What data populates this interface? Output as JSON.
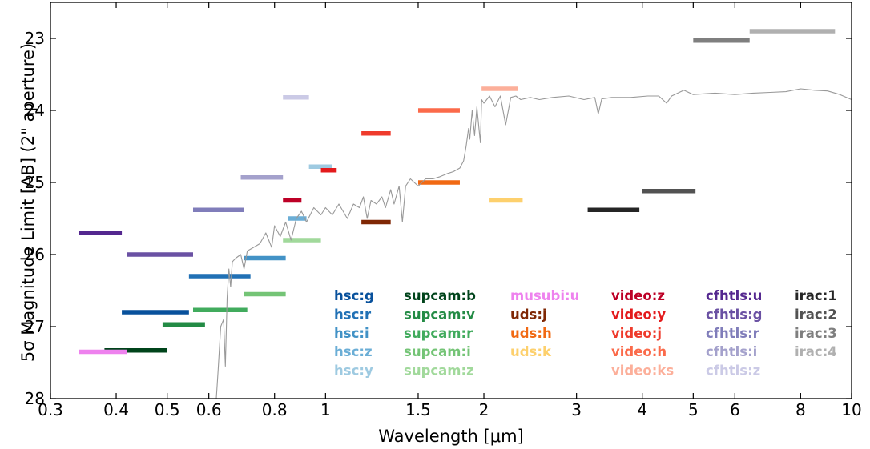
{
  "chart_data": {
    "type": "line",
    "xlabel": "Wavelength [μm]",
    "ylabel": "5σ Magnitude Limit [AB] (2\" aperture)",
    "xscale": "log",
    "xlim": [
      0.3,
      10
    ],
    "ylim": [
      28,
      22.5
    ],
    "y_inverted": true,
    "grid": false,
    "x_ticks": [
      {
        "v": 0.3,
        "label": "0.3"
      },
      {
        "v": 0.4,
        "label": "0.4"
      },
      {
        "v": 0.5,
        "label": "0.5"
      },
      {
        "v": 0.6,
        "label": "0.6"
      },
      {
        "v": 0.8,
        "label": "0.8"
      },
      {
        "v": 1.0,
        "label": "1"
      },
      {
        "v": 1.5,
        "label": "1.5"
      },
      {
        "v": 2.0,
        "label": "2"
      },
      {
        "v": 3.0,
        "label": "3"
      },
      {
        "v": 4.0,
        "label": "4"
      },
      {
        "v": 5.0,
        "label": "5"
      },
      {
        "v": 6.0,
        "label": "6"
      },
      {
        "v": 8.0,
        "label": "8"
      },
      {
        "v": 10.0,
        "label": "10"
      }
    ],
    "y_ticks": [
      {
        "v": 23,
        "label": "23"
      },
      {
        "v": 24,
        "label": "24"
      },
      {
        "v": 25,
        "label": "25"
      },
      {
        "v": 26,
        "label": "26"
      },
      {
        "v": 27,
        "label": "27"
      },
      {
        "v": 28,
        "label": "28"
      }
    ],
    "legend_placement": "lower-right",
    "spectrum": {
      "color": "#999999",
      "points": [
        [
          0.62,
          28.1
        ],
        [
          0.625,
          27.6
        ],
        [
          0.632,
          27.0
        ],
        [
          0.64,
          26.9
        ],
        [
          0.645,
          27.55
        ],
        [
          0.65,
          26.6
        ],
        [
          0.655,
          26.2
        ],
        [
          0.66,
          26.45
        ],
        [
          0.665,
          26.1
        ],
        [
          0.675,
          26.05
        ],
        [
          0.69,
          26.0
        ],
        [
          0.7,
          26.2
        ],
        [
          0.71,
          25.95
        ],
        [
          0.73,
          25.9
        ],
        [
          0.75,
          25.85
        ],
        [
          0.77,
          25.7
        ],
        [
          0.79,
          25.9
        ],
        [
          0.8,
          25.6
        ],
        [
          0.82,
          25.75
        ],
        [
          0.84,
          25.55
        ],
        [
          0.86,
          25.8
        ],
        [
          0.88,
          25.5
        ],
        [
          0.9,
          25.4
        ],
        [
          0.92,
          25.55
        ],
        [
          0.95,
          25.35
        ],
        [
          0.98,
          25.45
        ],
        [
          1.0,
          25.35
        ],
        [
          1.03,
          25.45
        ],
        [
          1.06,
          25.3
        ],
        [
          1.1,
          25.5
        ],
        [
          1.13,
          25.3
        ],
        [
          1.16,
          25.35
        ],
        [
          1.18,
          25.2
        ],
        [
          1.2,
          25.5
        ],
        [
          1.22,
          25.25
        ],
        [
          1.25,
          25.3
        ],
        [
          1.28,
          25.2
        ],
        [
          1.3,
          25.35
        ],
        [
          1.33,
          25.1
        ],
        [
          1.35,
          25.3
        ],
        [
          1.38,
          25.05
        ],
        [
          1.4,
          25.55
        ],
        [
          1.42,
          25.05
        ],
        [
          1.45,
          24.95
        ],
        [
          1.5,
          25.05
        ],
        [
          1.55,
          24.95
        ],
        [
          1.6,
          24.95
        ],
        [
          1.65,
          24.92
        ],
        [
          1.7,
          24.88
        ],
        [
          1.75,
          24.85
        ],
        [
          1.8,
          24.8
        ],
        [
          1.83,
          24.7
        ],
        [
          1.85,
          24.5
        ],
        [
          1.87,
          24.25
        ],
        [
          1.88,
          24.4
        ],
        [
          1.9,
          24.0
        ],
        [
          1.92,
          24.35
        ],
        [
          1.94,
          23.95
        ],
        [
          1.96,
          24.3
        ],
        [
          1.97,
          24.45
        ],
        [
          1.98,
          23.85
        ],
        [
          2.0,
          23.9
        ],
        [
          2.05,
          23.8
        ],
        [
          2.1,
          23.95
        ],
        [
          2.15,
          23.8
        ],
        [
          2.2,
          24.2
        ],
        [
          2.25,
          23.82
        ],
        [
          2.3,
          23.8
        ],
        [
          2.35,
          23.85
        ],
        [
          2.45,
          23.82
        ],
        [
          2.55,
          23.85
        ],
        [
          2.7,
          23.82
        ],
        [
          2.9,
          23.8
        ],
        [
          3.1,
          23.85
        ],
        [
          3.25,
          23.82
        ],
        [
          3.3,
          24.05
        ],
        [
          3.35,
          23.84
        ],
        [
          3.5,
          23.82
        ],
        [
          3.8,
          23.82
        ],
        [
          4.1,
          23.8
        ],
        [
          4.3,
          23.8
        ],
        [
          4.45,
          23.9
        ],
        [
          4.55,
          23.8
        ],
        [
          4.8,
          23.72
        ],
        [
          5.0,
          23.78
        ],
        [
          5.5,
          23.76
        ],
        [
          6.0,
          23.78
        ],
        [
          6.5,
          23.76
        ],
        [
          7.0,
          23.75
        ],
        [
          7.5,
          23.74
        ],
        [
          8.0,
          23.7
        ],
        [
          8.5,
          23.72
        ],
        [
          9.0,
          23.73
        ],
        [
          9.5,
          23.78
        ],
        [
          10.0,
          23.85
        ]
      ]
    },
    "series": [
      {
        "name": "hsc:g",
        "color": "#08519c",
        "x": [
          0.41,
          0.55
        ],
        "y": 26.8
      },
      {
        "name": "hsc:r",
        "color": "#2171b5",
        "x": [
          0.55,
          0.72
        ],
        "y": 26.3
      },
      {
        "name": "hsc:i",
        "color": "#4292c6",
        "x": [
          0.7,
          0.84
        ],
        "y": 26.05
      },
      {
        "name": "hsc:z",
        "color": "#6baed6",
        "x": [
          0.85,
          0.92
        ],
        "y": 25.5
      },
      {
        "name": "hsc:y",
        "color": "#9ecae1",
        "x": [
          0.93,
          1.03
        ],
        "y": 24.78
      },
      {
        "name": "supcam:b",
        "color": "#00441b",
        "x": [
          0.38,
          0.5
        ],
        "y": 27.33
      },
      {
        "name": "supcam:v",
        "color": "#238b45",
        "x": [
          0.49,
          0.59
        ],
        "y": 26.97
      },
      {
        "name": "supcam:r",
        "color": "#41ab5d",
        "x": [
          0.56,
          0.71
        ],
        "y": 26.77
      },
      {
        "name": "supcam:i",
        "color": "#74c476",
        "x": [
          0.7,
          0.84
        ],
        "y": 26.55
      },
      {
        "name": "supcam:z",
        "color": "#a1d99b",
        "x": [
          0.83,
          0.98
        ],
        "y": 25.8
      },
      {
        "name": "musubi:u",
        "color": "#ee82ee",
        "x": [
          0.34,
          0.42
        ],
        "y": 27.35
      },
      {
        "name": "uds:j",
        "color": "#7f2704",
        "x": [
          1.17,
          1.33
        ],
        "y": 25.55
      },
      {
        "name": "uds:h",
        "color": "#f16913",
        "x": [
          1.5,
          1.8
        ],
        "y": 25.0
      },
      {
        "name": "uds:k",
        "color": "#fdd06d",
        "x": [
          2.05,
          2.37
        ],
        "y": 25.25
      },
      {
        "name": "video:z",
        "color": "#bd0026",
        "x": [
          0.83,
          0.9
        ],
        "y": 25.25
      },
      {
        "name": "video:y",
        "color": "#e31a1c",
        "x": [
          0.98,
          1.05
        ],
        "y": 24.83
      },
      {
        "name": "video:j",
        "color": "#ef3b2c",
        "x": [
          1.17,
          1.33
        ],
        "y": 24.32
      },
      {
        "name": "video:h",
        "color": "#fb6a4a",
        "x": [
          1.5,
          1.8
        ],
        "y": 24.0
      },
      {
        "name": "video:ks",
        "color": "#fcaf9a",
        "x": [
          1.98,
          2.32
        ],
        "y": 23.7
      },
      {
        "name": "cfhtls:u",
        "color": "#54278f",
        "x": [
          0.34,
          0.41
        ],
        "y": 25.7
      },
      {
        "name": "cfhtls:g",
        "color": "#6a51a3",
        "x": [
          0.42,
          0.56
        ],
        "y": 26.0
      },
      {
        "name": "cfhtls:r",
        "color": "#807dba",
        "x": [
          0.56,
          0.7
        ],
        "y": 25.38
      },
      {
        "name": "cfhtls:i",
        "color": "#a4a1cc",
        "x": [
          0.69,
          0.83
        ],
        "y": 24.93
      },
      {
        "name": "cfhtls:z",
        "color": "#cbcae6",
        "x": [
          0.83,
          0.93
        ],
        "y": 23.82
      },
      {
        "name": "irac:1",
        "color": "#252525",
        "x": [
          3.15,
          3.95
        ],
        "y": 25.38
      },
      {
        "name": "irac:2",
        "color": "#525252",
        "x": [
          4.0,
          5.05
        ],
        "y": 25.12
      },
      {
        "name": "irac:3",
        "color": "#7f7f7f",
        "x": [
          5.0,
          6.4
        ],
        "y": 23.03
      },
      {
        "name": "irac:4",
        "color": "#b0b0b0",
        "x": [
          6.4,
          9.3
        ],
        "y": 22.9
      }
    ],
    "legend_columns": [
      [
        "hsc:g",
        "hsc:r",
        "hsc:i",
        "hsc:z",
        "hsc:y"
      ],
      [
        "supcam:b",
        "supcam:v",
        "supcam:r",
        "supcam:i",
        "supcam:z"
      ],
      [
        "musubi:u",
        "uds:j",
        "uds:h",
        "uds:k"
      ],
      [
        "video:z",
        "video:y",
        "video:j",
        "video:h",
        "video:ks"
      ],
      [
        "cfhtls:u",
        "cfhtls:g",
        "cfhtls:r",
        "cfhtls:i",
        "cfhtls:z"
      ],
      [
        "irac:1",
        "irac:2",
        "irac:3",
        "irac:4"
      ]
    ]
  }
}
